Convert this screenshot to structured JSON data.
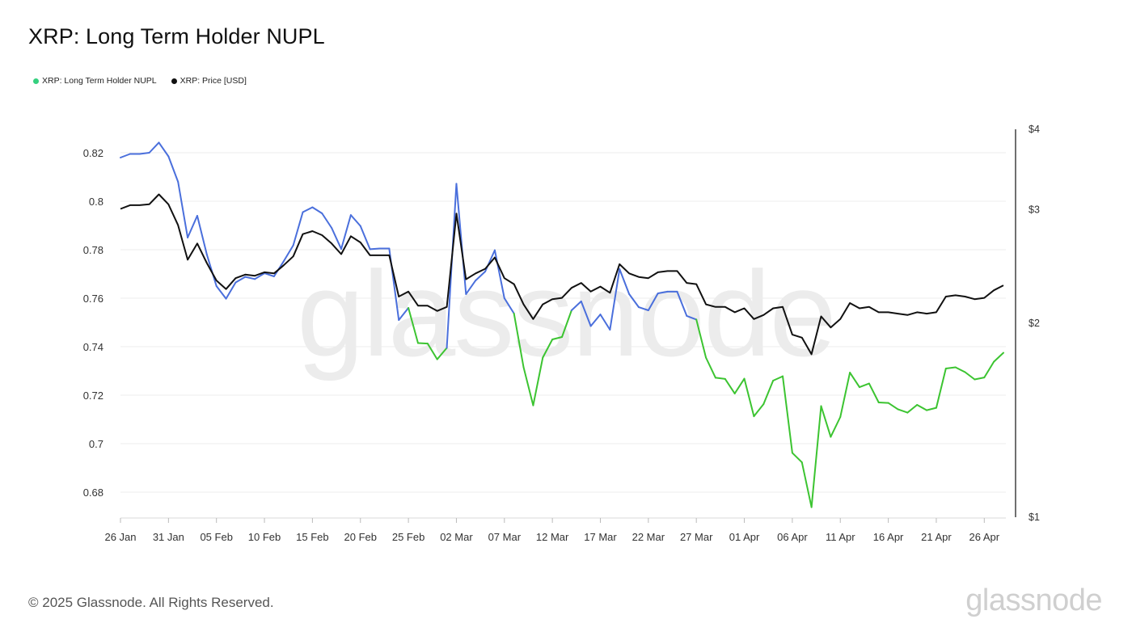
{
  "header": {
    "title": "XRP: Long Term Holder NUPL"
  },
  "legend": [
    {
      "label": "XRP: Long Term Holder NUPL",
      "color": "#35d07f"
    },
    {
      "label": "XRP: Price [USD]",
      "color": "#111111"
    }
  ],
  "footer": {
    "copyright": "© 2025 Glassnode. All Rights Reserved.",
    "brand": "glassnode"
  },
  "watermark": "glassnode",
  "chart_data": {
    "type": "line",
    "title": "XRP: Long Term Holder NUPL",
    "x_ticks": [
      "26 Jan",
      "31 Jan",
      "05 Feb",
      "10 Feb",
      "15 Feb",
      "20 Feb",
      "25 Feb",
      "02 Mar",
      "07 Mar",
      "12 Mar",
      "17 Mar",
      "22 Mar",
      "27 Mar",
      "01 Apr",
      "06 Apr",
      "11 Apr",
      "16 Apr",
      "21 Apr",
      "26 Apr"
    ],
    "x_start": "2025-01-26",
    "left_axis": {
      "ticks": [
        0.68,
        0.7,
        0.72,
        0.74,
        0.76,
        0.78,
        0.8,
        0.82
      ],
      "tick_labels": [
        "0.68",
        "0.7",
        "0.72",
        "0.74",
        "0.76",
        "0.78",
        "0.8",
        "0.82"
      ],
      "range": [
        0.67,
        0.83
      ]
    },
    "right_axis": {
      "scale": "log",
      "ticks": [
        1,
        2,
        3,
        4
      ],
      "tick_labels": [
        "$1",
        "$2",
        "$3",
        "$4"
      ],
      "range": [
        1,
        4
      ]
    },
    "nupl_colors": {
      "above_threshold": "#4a6fdc",
      "below_threshold": "#3cc431"
    },
    "nupl_threshold": 0.75,
    "grid": true,
    "series": [
      {
        "name": "XRP: Long Term Holder NUPL",
        "axis": "left",
        "values": [
          0.818,
          0.8195,
          0.8195,
          0.82,
          0.8242,
          0.8185,
          0.808,
          0.785,
          0.794,
          0.778,
          0.765,
          0.7598,
          0.7665,
          0.7688,
          0.7679,
          0.7703,
          0.769,
          0.7752,
          0.7818,
          0.7955,
          0.7975,
          0.795,
          0.789,
          0.7803,
          0.7943,
          0.7898,
          0.7802,
          0.7805,
          0.7805,
          0.751,
          0.756,
          0.7415,
          0.7413,
          0.7348,
          0.7395,
          0.8072,
          0.7617,
          0.7673,
          0.771,
          0.7798,
          0.76,
          0.7537,
          0.7315,
          0.7158,
          0.7355,
          0.743,
          0.744,
          0.755,
          0.7587,
          0.7485,
          0.7533,
          0.747,
          0.772,
          0.7617,
          0.7563,
          0.755,
          0.762,
          0.7627,
          0.7627,
          0.7527,
          0.7512,
          0.7355,
          0.7272,
          0.7267,
          0.7207,
          0.7268,
          0.7113,
          0.7163,
          0.726,
          0.7278,
          0.6962,
          0.6923,
          0.6738,
          0.7155,
          0.7028,
          0.711,
          0.7293,
          0.7233,
          0.7248,
          0.717,
          0.7168,
          0.7142,
          0.7128,
          0.716,
          0.7138,
          0.7148,
          0.731,
          0.7315,
          0.7295,
          0.7265,
          0.7273,
          0.7338,
          0.7375
        ]
      },
      {
        "name": "XRP: Price [USD]",
        "axis": "right",
        "color": "#111111",
        "values": [
          3.01,
          3.05,
          3.05,
          3.06,
          3.17,
          3.06,
          2.84,
          2.51,
          2.66,
          2.48,
          2.33,
          2.26,
          2.35,
          2.38,
          2.37,
          2.4,
          2.39,
          2.46,
          2.54,
          2.75,
          2.78,
          2.74,
          2.66,
          2.56,
          2.73,
          2.67,
          2.55,
          2.55,
          2.55,
          2.2,
          2.24,
          2.13,
          2.13,
          2.09,
          2.12,
          2.96,
          2.34,
          2.39,
          2.43,
          2.53,
          2.35,
          2.3,
          2.14,
          2.03,
          2.14,
          2.18,
          2.19,
          2.27,
          2.31,
          2.24,
          2.28,
          2.23,
          2.47,
          2.39,
          2.36,
          2.35,
          2.4,
          2.41,
          2.41,
          2.31,
          2.3,
          2.14,
          2.12,
          2.12,
          2.08,
          2.11,
          2.03,
          2.06,
          2.11,
          2.12,
          1.92,
          1.9,
          1.79,
          2.05,
          1.97,
          2.03,
          2.15,
          2.11,
          2.12,
          2.08,
          2.08,
          2.07,
          2.06,
          2.08,
          2.07,
          2.08,
          2.2,
          2.21,
          2.2,
          2.18,
          2.19,
          2.25,
          2.29
        ]
      }
    ]
  }
}
